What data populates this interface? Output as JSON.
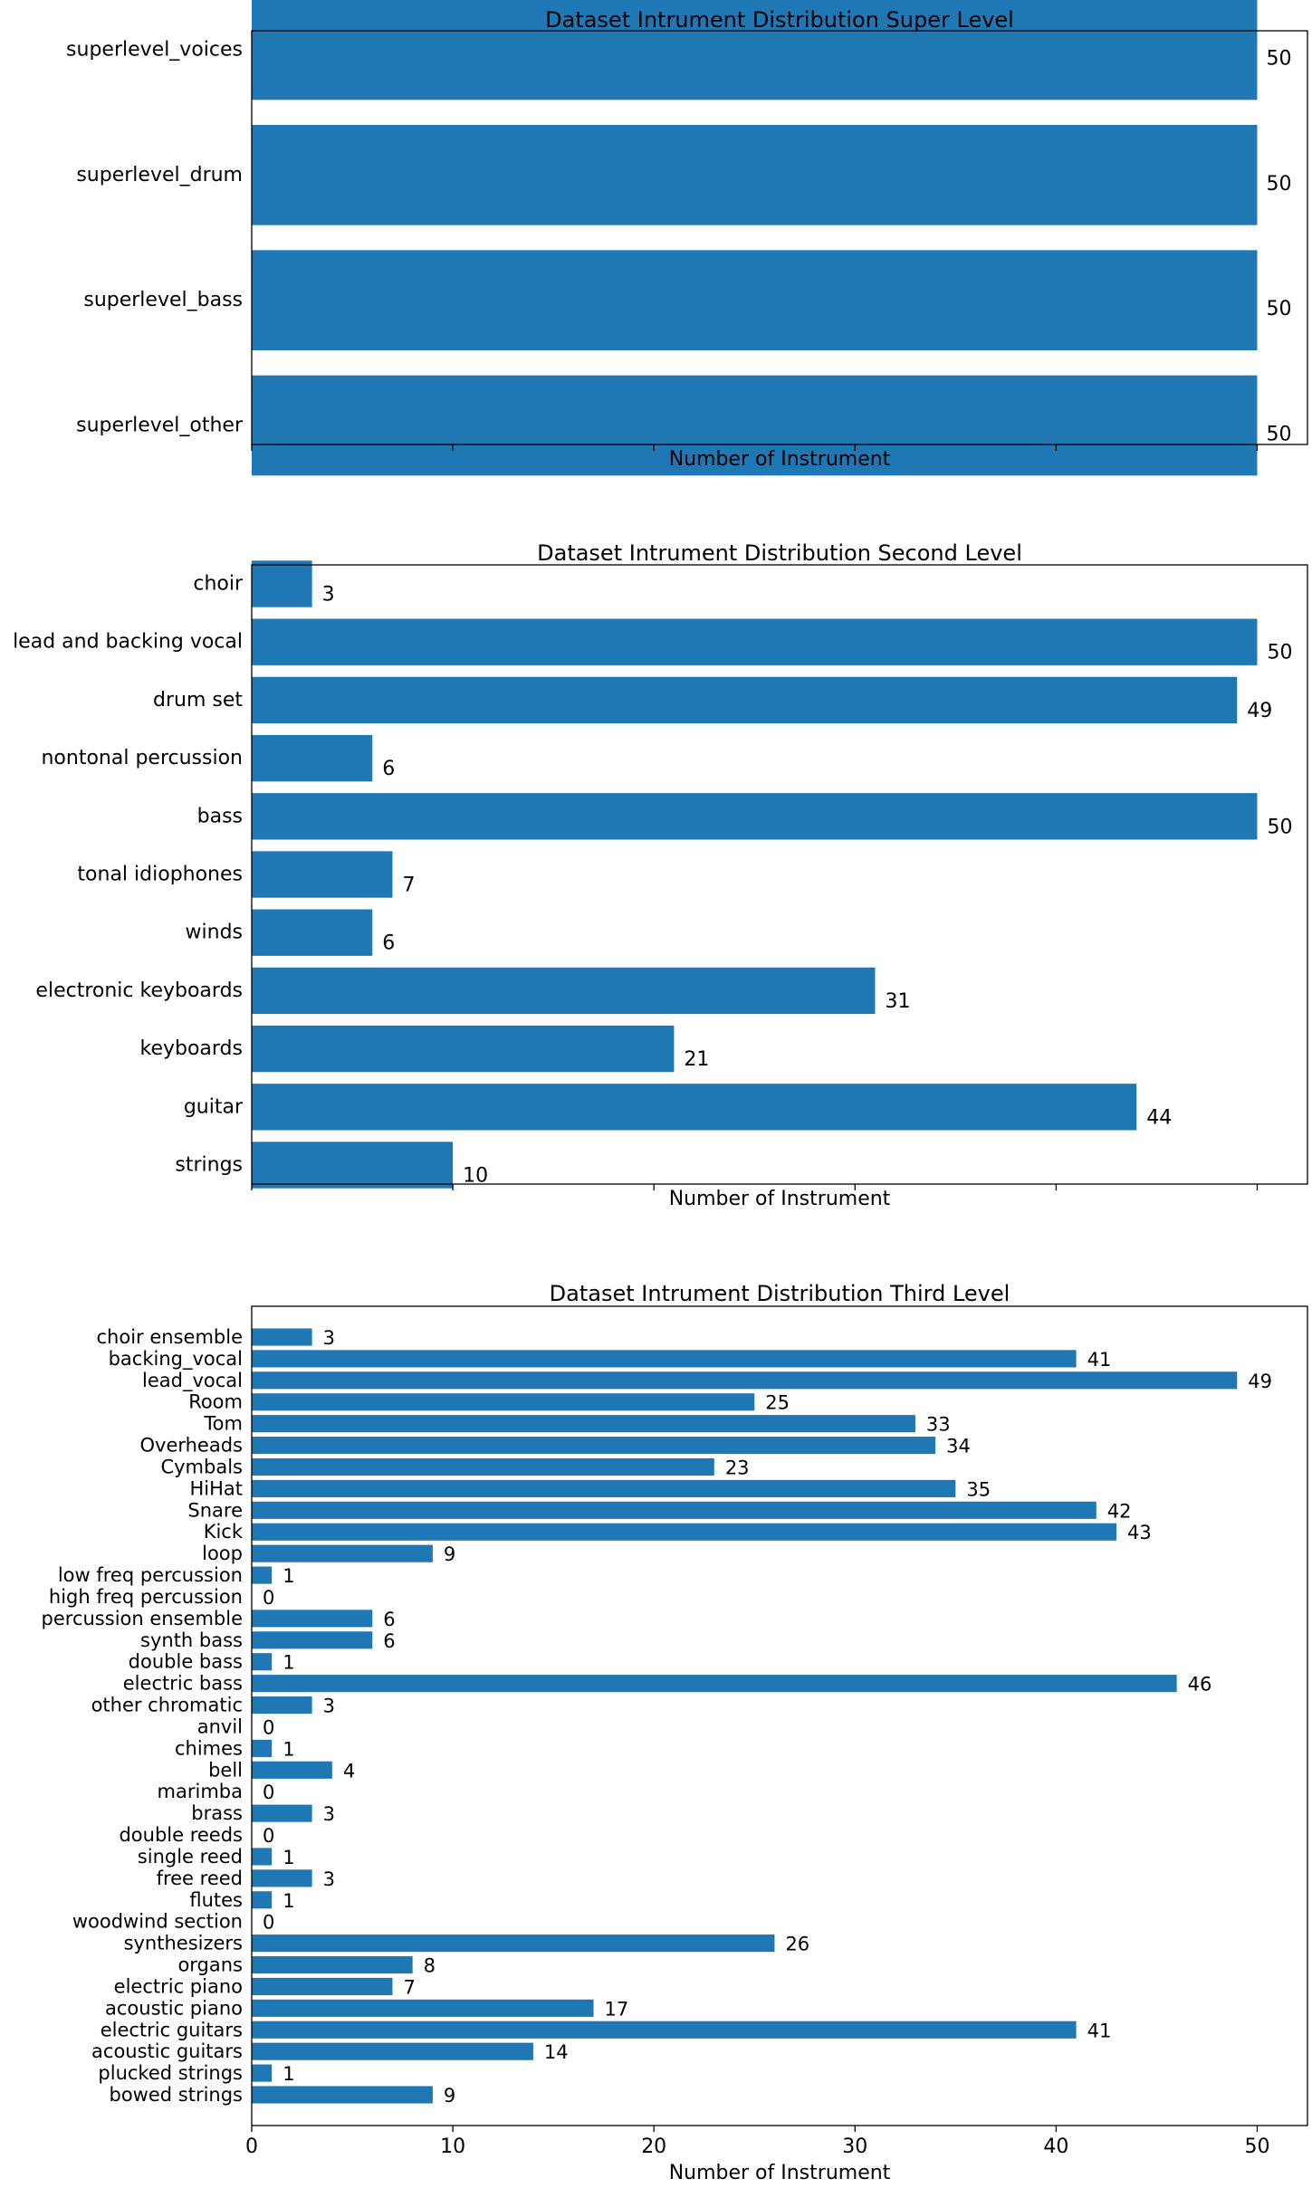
{
  "colors": {
    "bar": "#1f77b4"
  },
  "chart_data": [
    {
      "type": "bar",
      "orientation": "horizontal",
      "title": "Dataset Intrument Distribution Super Level",
      "xlabel": "Number of Instrument",
      "ylabel": "",
      "xlim": [
        0,
        52.5
      ],
      "x_tick_labels_shown": false,
      "categories": [
        "superlevel_voices",
        "superlevel_drum",
        "superlevel_bass",
        "superlevel_other"
      ],
      "values": [
        50,
        50,
        50,
        50
      ]
    },
    {
      "type": "bar",
      "orientation": "horizontal",
      "title": "Dataset Intrument Distribution Second Level",
      "xlabel": "Number of Instrument",
      "ylabel": "",
      "xlim": [
        0,
        52.5
      ],
      "x_tick_labels_shown": false,
      "categories": [
        "choir",
        "lead and backing vocal",
        "drum set",
        "nontonal percussion",
        "bass",
        "tonal idiophones",
        "winds",
        "electronic keyboards",
        "keyboards",
        "guitar",
        "strings"
      ],
      "values": [
        3,
        50,
        49,
        6,
        50,
        7,
        6,
        31,
        21,
        44,
        10
      ]
    },
    {
      "type": "bar",
      "orientation": "horizontal",
      "title": "Dataset Intrument Distribution Third Level",
      "xlabel": "Number of Instrument",
      "ylabel": "",
      "xlim": [
        0,
        52.5
      ],
      "x_ticks": [
        0,
        10,
        20,
        30,
        40,
        50
      ],
      "x_tick_labels_shown": true,
      "categories": [
        "choir ensemble",
        "backing_vocal",
        "lead_vocal",
        "Room",
        "Tom",
        "Overheads",
        "Cymbals",
        "HiHat",
        "Snare",
        "Kick",
        "loop",
        "low freq percussion",
        "high freq percussion",
        "percussion ensemble",
        "synth bass",
        "double bass",
        "electric bass",
        "other chromatic",
        "anvil",
        "chimes",
        "bell",
        "marimba",
        "brass",
        "double reeds",
        "single reed",
        "free reed",
        "flutes",
        "woodwind section",
        "synthesizers",
        "organs",
        "electric piano",
        "acoustic piano",
        "electric guitars",
        "acoustic guitars",
        "plucked strings",
        "bowed strings"
      ],
      "values": [
        3,
        41,
        49,
        25,
        33,
        34,
        23,
        35,
        42,
        43,
        9,
        1,
        0,
        6,
        6,
        1,
        46,
        3,
        0,
        1,
        4,
        0,
        3,
        0,
        1,
        3,
        1,
        0,
        26,
        8,
        7,
        17,
        41,
        14,
        1,
        9
      ]
    }
  ]
}
